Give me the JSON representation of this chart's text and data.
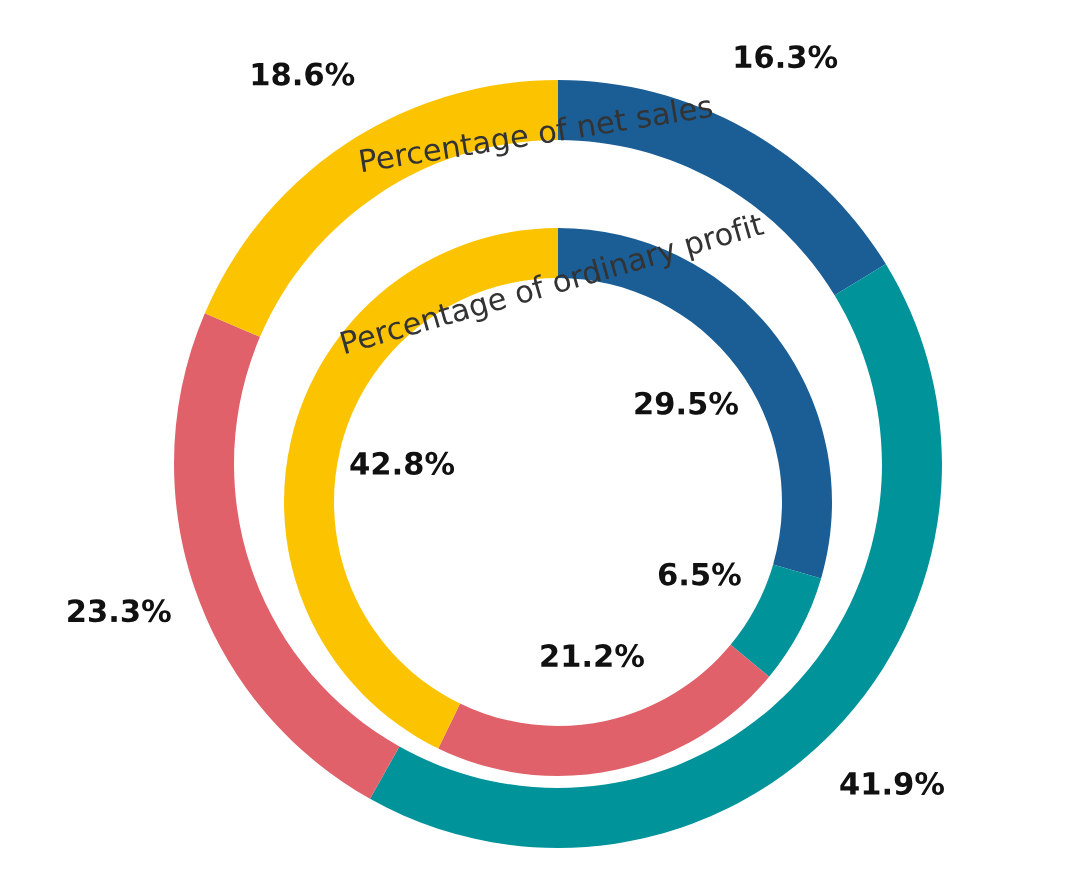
{
  "chart_data": {
    "type": "donut",
    "categories": [
      null,
      null,
      null,
      null
    ],
    "colors": [
      "#1b5e96",
      "#00939a",
      "#e0616a",
      "#fcc400"
    ],
    "series": [
      {
        "name": "Percentage of net sales",
        "values": [
          16.3,
          41.9,
          23.3,
          18.6
        ],
        "value_labels": [
          "16.3%",
          "41.9%",
          "23.3%",
          "18.6%"
        ]
      },
      {
        "name": "Percentage of ordinary profit",
        "values": [
          29.5,
          6.5,
          21.2,
          42.8
        ],
        "value_labels": [
          "29.5%",
          "6.5%",
          "21.2%",
          "42.8%"
        ]
      }
    ]
  }
}
